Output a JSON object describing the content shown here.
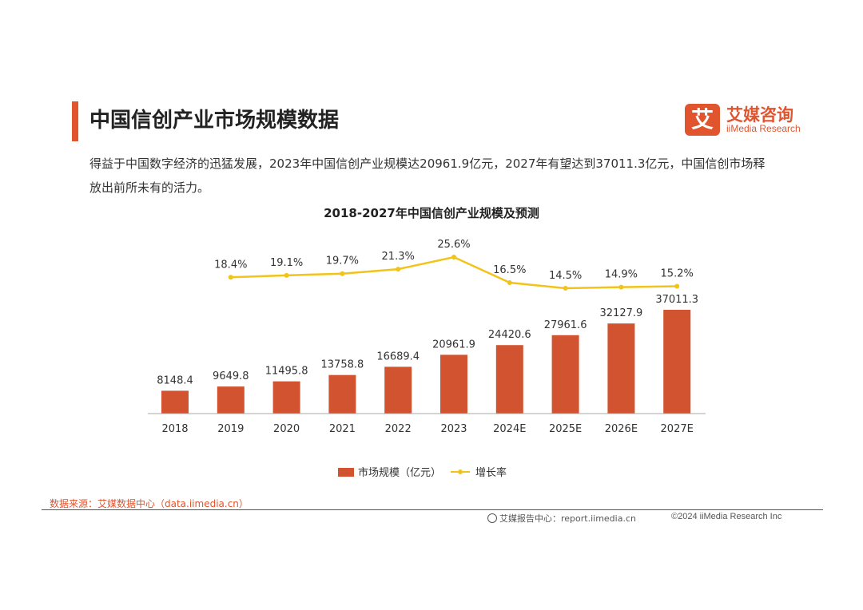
{
  "header": {
    "title": "中国信创产业市场规模数据",
    "logo_mark": "艾",
    "logo_cn": "艾媒咨询",
    "logo_en": "iiMedia Research"
  },
  "description": "得益于中国数字经济的迅猛发展，2023年中国信创产业规模达20961.9亿元，2027年有望达到37011.3亿元，中国信创市场释放出前所未有的活力。",
  "colors": {
    "accent": "#e0542e",
    "bar": "#d2532f",
    "line": "#f2c318"
  },
  "chart_data": {
    "type": "bar",
    "title": "2018-2027年中国信创产业规模及预测",
    "categories": [
      "2018",
      "2019",
      "2020",
      "2021",
      "2022",
      "2023",
      "2024E",
      "2025E",
      "2026E",
      "2027E"
    ],
    "series": [
      {
        "name": "市场规模（亿元）",
        "type": "bar",
        "values": [
          8148.4,
          9649.8,
          11495.8,
          13758.8,
          16689.4,
          20961.9,
          24420.6,
          27961.6,
          32127.9,
          37011.3
        ],
        "labels": [
          "8148.4",
          "9649.8",
          "11495.8",
          "13758.8",
          "16689.4",
          "20961.9",
          "24420.6",
          "27961.6",
          "32127.9",
          "37011.3"
        ]
      },
      {
        "name": "增长率",
        "type": "line",
        "values": [
          null,
          18.4,
          19.1,
          19.7,
          21.3,
          25.6,
          16.5,
          14.5,
          14.9,
          15.2
        ],
        "labels": [
          "",
          "18.4%",
          "19.1%",
          "19.7%",
          "21.3%",
          "25.6%",
          "16.5%",
          "14.5%",
          "14.9%",
          "15.2%"
        ]
      }
    ],
    "legend": [
      "市场规模（亿元）",
      "增长率"
    ]
  },
  "footer": {
    "source": "数据来源：艾媒数据中心（data.iimedia.cn）",
    "center": "艾媒报告中心：report.iimedia.cn",
    "right": "©2024  iiMedia Research  Inc"
  }
}
